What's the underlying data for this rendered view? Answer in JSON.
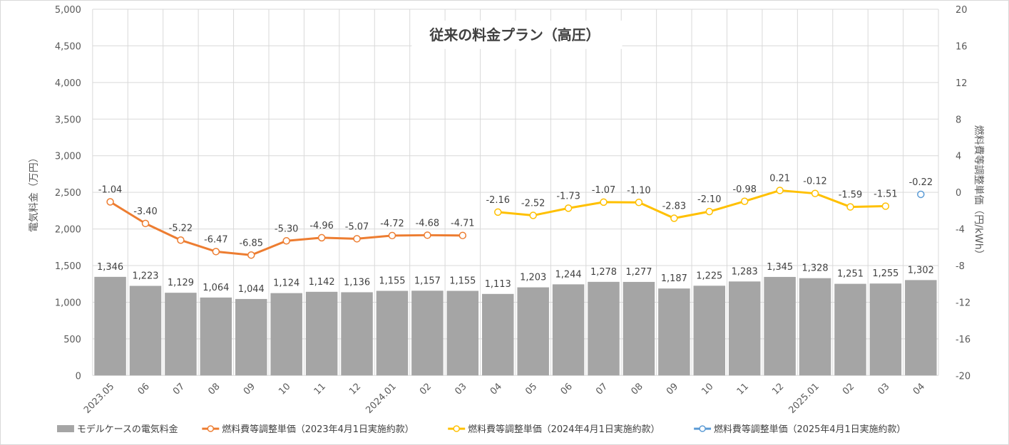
{
  "chart_data": {
    "type": "bar",
    "title": "従来の料金プラン（高圧）",
    "ylabel_left": "電気料金（万円）",
    "ylabel_right": "燃料費等調整単価（円/kWh）",
    "ylim_left": [
      0,
      5000
    ],
    "yticks_left": [
      "0",
      "500",
      "1,000",
      "1,500",
      "2,000",
      "2,500",
      "3,000",
      "3,500",
      "4,000",
      "4,500",
      "5,000"
    ],
    "ylim_right": [
      -20,
      20
    ],
    "yticks_right": [
      "-20",
      "-16",
      "-12",
      "-8",
      "-4",
      "0",
      "4",
      "8",
      "12",
      "16",
      "20"
    ],
    "categories": [
      "2023.05",
      "06",
      "07",
      "08",
      "09",
      "10",
      "11",
      "12",
      "2024.01",
      "02",
      "03",
      "04",
      "05",
      "06",
      "07",
      "08",
      "09",
      "10",
      "11",
      "12",
      "2025.01",
      "02",
      "03",
      "04"
    ],
    "grid": true,
    "legend_position": "bottom",
    "bar_series": {
      "name": "モデルケースの電気料金",
      "color": "#a5a5a5",
      "values": [
        1346,
        1223,
        1129,
        1064,
        1044,
        1124,
        1142,
        1136,
        1155,
        1157,
        1155,
        1113,
        1203,
        1244,
        1278,
        1277,
        1187,
        1225,
        1283,
        1345,
        1328,
        1251,
        1255,
        1302
      ],
      "labels": [
        "1,346",
        "1,223",
        "1,129",
        "1,064",
        "1,044",
        "1,124",
        "1,142",
        "1,136",
        "1,155",
        "1,157",
        "1,155",
        "1,113",
        "1,203",
        "1,244",
        "1,278",
        "1,277",
        "1,187",
        "1,225",
        "1,283",
        "1,345",
        "1,328",
        "1,251",
        "1,255",
        "1,302"
      ]
    },
    "line_series": [
      {
        "name": "燃料費等調整単価（2023年4月1日実施約款）",
        "color": "#ed7d31",
        "start_index": 0,
        "values": [
          -1.04,
          -3.4,
          -5.22,
          -6.47,
          -6.85,
          -5.3,
          -4.96,
          -5.07,
          -4.72,
          -4.68,
          -4.71
        ],
        "labels": [
          "-1.04",
          "-3.40",
          "-5.22",
          "-6.47",
          "-6.85",
          "-5.30",
          "-4.96",
          "-5.07",
          "-4.72",
          "-4.68",
          "-4.71"
        ]
      },
      {
        "name": "燃料費等調整単価（2024年4月1日実施約款）",
        "color": "#ffc000",
        "start_index": 11,
        "values": [
          -2.16,
          -2.52,
          -1.73,
          -1.07,
          -1.1,
          -2.83,
          -2.1,
          -0.98,
          0.21,
          -0.12,
          -1.59,
          -1.51
        ],
        "labels": [
          "-2.16",
          "-2.52",
          "-1.73",
          "-1.07",
          "-1.10",
          "-2.83",
          "-2.10",
          "-0.98",
          "0.21",
          "-0.12",
          "-1.59",
          "-1.51"
        ]
      },
      {
        "name": "燃料費等調整単価（2025年4月1日実施約款）",
        "color": "#5b9bd5",
        "start_index": 23,
        "values": [
          -0.22
        ],
        "labels": [
          "-0.22"
        ]
      }
    ]
  }
}
